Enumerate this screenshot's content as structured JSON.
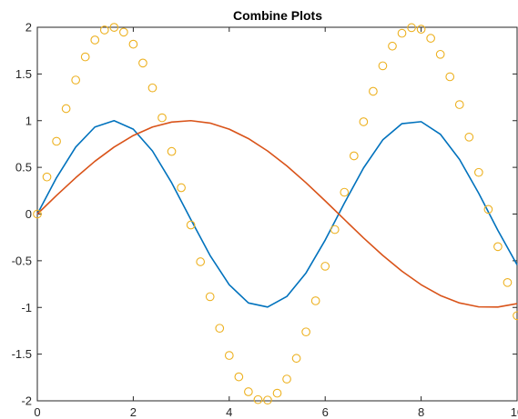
{
  "chart_data": {
    "type": "line",
    "title": "Combine Plots",
    "xlabel": "",
    "ylabel": "",
    "xlim": [
      0,
      10
    ],
    "ylim": [
      -2,
      2
    ],
    "x_ticks": [
      0,
      2,
      4,
      6,
      8,
      10
    ],
    "x_tick_labels": [
      "0",
      "2",
      "4",
      "6",
      "8",
      "10"
    ],
    "y_ticks": [
      -2,
      -1.5,
      -1,
      -0.5,
      0,
      0.5,
      1,
      1.5,
      2
    ],
    "y_tick_labels": [
      "-2",
      "-1.5",
      "-1",
      "-0.5",
      "0",
      "0.5",
      "1",
      "1.5",
      "2"
    ],
    "grid": false,
    "legend": "none",
    "series": [
      {
        "style": "line",
        "color": "#0072BD",
        "x": [
          0,
          0.4,
          0.8,
          1.2,
          1.6,
          2.0,
          2.4,
          2.8,
          3.2,
          3.6,
          4.0,
          4.4,
          4.8,
          5.2,
          5.6,
          6.0,
          6.4,
          6.8,
          7.2,
          7.6,
          8.0,
          8.4,
          8.8,
          9.2,
          9.6,
          10.0
        ],
        "values": [
          0,
          0.389,
          0.717,
          0.932,
          1.0,
          0.909,
          0.675,
          0.335,
          -0.058,
          -0.443,
          -0.757,
          -0.952,
          -0.996,
          -0.883,
          -0.631,
          -0.279,
          0.117,
          0.494,
          0.794,
          0.968,
          0.989,
          0.855,
          0.585,
          0.223,
          -0.175,
          -0.544
        ]
      },
      {
        "style": "line",
        "color": "#D95319",
        "x": [
          0,
          0.4,
          0.8,
          1.2,
          1.6,
          2.0,
          2.4,
          2.8,
          3.2,
          3.6,
          4.0,
          4.4,
          4.8,
          5.2,
          5.6,
          6.0,
          6.4,
          6.8,
          7.2,
          7.6,
          8.0,
          8.4,
          8.8,
          9.2,
          9.6,
          10.0
        ],
        "values": [
          0,
          0.199,
          0.389,
          0.565,
          0.717,
          0.841,
          0.932,
          0.985,
          1.0,
          0.974,
          0.909,
          0.808,
          0.675,
          0.516,
          0.335,
          0.141,
          -0.058,
          -0.256,
          -0.443,
          -0.612,
          -0.757,
          -0.872,
          -0.952,
          -0.994,
          -0.996,
          -0.959
        ]
      },
      {
        "style": "markers",
        "marker": "circle",
        "color": "#EDB120",
        "x": [
          0,
          0.2,
          0.4,
          0.6,
          0.8,
          1.0,
          1.2,
          1.4,
          1.6,
          1.8,
          2.0,
          2.2,
          2.4,
          2.6,
          2.8,
          3.0,
          3.2,
          3.4,
          3.6,
          3.8,
          4.0,
          4.2,
          4.4,
          4.6,
          4.8,
          5.0,
          5.2,
          5.4,
          5.6,
          5.8,
          6.0,
          6.2,
          6.4,
          6.6,
          6.8,
          7.0,
          7.2,
          7.4,
          7.6,
          7.8,
          8.0,
          8.2,
          8.4,
          8.6,
          8.8,
          9.0,
          9.2,
          9.4,
          9.6,
          9.8,
          10.0
        ],
        "values": [
          0,
          0.397,
          0.779,
          1.129,
          1.435,
          1.683,
          1.864,
          1.971,
          1.999,
          1.948,
          1.819,
          1.617,
          1.351,
          1.031,
          0.67,
          0.282,
          -0.117,
          -0.511,
          -0.885,
          -1.223,
          -1.514,
          -1.743,
          -1.903,
          -1.987,
          -1.992,
          -1.918,
          -1.767,
          -1.545,
          -1.262,
          -0.929,
          -0.559,
          -0.166,
          0.233,
          0.623,
          0.988,
          1.314,
          1.587,
          1.798,
          1.936,
          1.996,
          1.979,
          1.882,
          1.71,
          1.47,
          1.172,
          0.824,
          0.446,
          0.05,
          -0.349,
          -0.733,
          -1.088
        ]
      }
    ]
  }
}
